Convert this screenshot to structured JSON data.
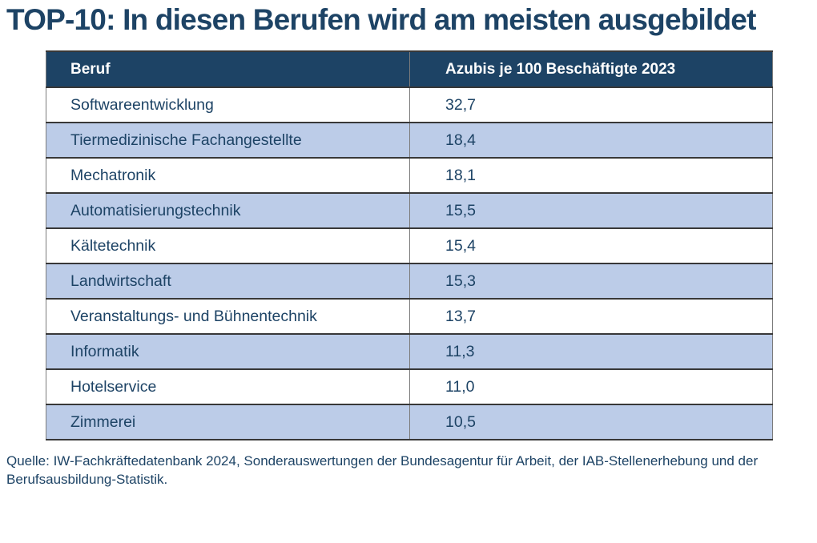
{
  "title": "TOP-10: In diesen Berufen wird am meisten ausgebildet",
  "table": {
    "headers": {
      "beruf": "Beruf",
      "value": "Azubis je 100 Beschäftigte 2023"
    },
    "rows": [
      {
        "beruf": "Softwareentwicklung",
        "value": "32,7"
      },
      {
        "beruf": "Tiermedizinische Fachangestellte",
        "value": "18,4"
      },
      {
        "beruf": "Mechatronik",
        "value": "18,1"
      },
      {
        "beruf": "Automatisierungstechnik",
        "value": "15,5"
      },
      {
        "beruf": "Kältetechnik",
        "value": "15,4"
      },
      {
        "beruf": "Landwirtschaft",
        "value": "15,3"
      },
      {
        "beruf": "Veranstaltungs- und Bühnentechnik",
        "value": "13,7"
      },
      {
        "beruf": "Informatik",
        "value": "11,3"
      },
      {
        "beruf": "Hotelservice",
        "value": "11,0"
      },
      {
        "beruf": "Zimmerei",
        "value": "10,5"
      }
    ]
  },
  "source": "Quelle: IW-Fachkräftedatenbank 2024, Sonderauswertungen der Bundesagentur für Arbeit, der IAB-Stellenerhebung und der Berufsausbildung-Statistik.",
  "colors": {
    "header_bg": "#1d4365",
    "header_text": "#ffffff",
    "row_alt_bg": "#bccce8",
    "body_text": "#1d4365",
    "border_dark": "#383838",
    "border_gray": "#7b7b7b"
  },
  "chart_data": {
    "type": "table",
    "title": "TOP-10: In diesen Berufen wird am meisten ausgebildet",
    "columns": [
      "Beruf",
      "Azubis je 100 Beschäftigte 2023"
    ],
    "categories": [
      "Softwareentwicklung",
      "Tiermedizinische Fachangestellte",
      "Mechatronik",
      "Automatisierungstechnik",
      "Kältetechnik",
      "Landwirtschaft",
      "Veranstaltungs- und Bühnentechnik",
      "Informatik",
      "Hotelservice",
      "Zimmerei"
    ],
    "values": [
      32.7,
      18.4,
      18.1,
      15.5,
      15.4,
      15.3,
      13.7,
      11.3,
      11.0,
      10.5
    ],
    "source": "Quelle: IW-Fachkräftedatenbank 2024, Sonderauswertungen der Bundesagentur für Arbeit, der IAB-Stellenerhebung und der Berufsausbildung-Statistik."
  }
}
